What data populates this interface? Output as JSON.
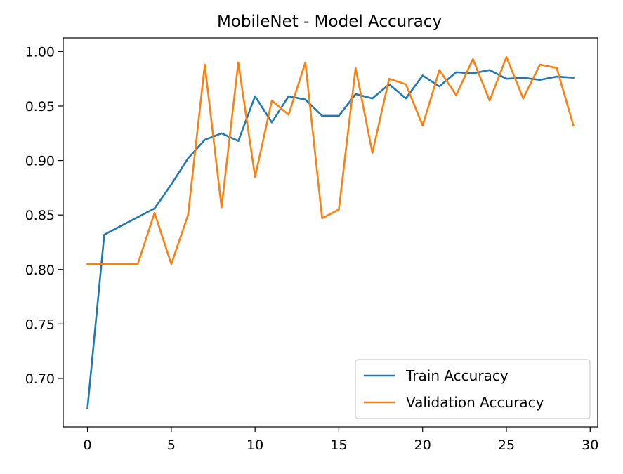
{
  "chart_data": {
    "type": "line",
    "title": "MobileNet - Model Accuracy",
    "xlabel": "",
    "ylabel": "",
    "xlim": [
      -1.45,
      30.45
    ],
    "ylim": [
      0.6555,
      1.0125
    ],
    "xticks": [
      0,
      5,
      10,
      15,
      20,
      25,
      30
    ],
    "xtick_labels": [
      "0",
      "5",
      "10",
      "15",
      "20",
      "25",
      "30"
    ],
    "yticks": [
      0.7,
      0.75,
      0.8,
      0.85,
      0.9,
      0.95,
      1.0
    ],
    "ytick_labels": [
      "0.70",
      "0.75",
      "0.80",
      "0.85",
      "0.90",
      "0.95",
      "1.00"
    ],
    "grid": false,
    "legend_position": "lower right",
    "x": [
      0,
      1,
      2,
      3,
      4,
      5,
      6,
      7,
      8,
      9,
      10,
      11,
      12,
      13,
      14,
      15,
      16,
      17,
      18,
      19,
      20,
      21,
      22,
      23,
      24,
      25,
      26,
      27,
      28,
      29
    ],
    "series": [
      {
        "name": "Train Accuracy",
        "color": "#1f77b4",
        "values": [
          0.673,
          0.832,
          0.84,
          0.848,
          0.856,
          0.878,
          0.902,
          0.919,
          0.925,
          0.918,
          0.959,
          0.935,
          0.959,
          0.956,
          0.941,
          0.941,
          0.961,
          0.957,
          0.97,
          0.957,
          0.978,
          0.968,
          0.981,
          0.98,
          0.983,
          0.975,
          0.976,
          0.974,
          0.977,
          0.976
        ]
      },
      {
        "name": "Validation Accuracy",
        "color": "#ff7f0e",
        "values": [
          0.805,
          0.805,
          0.805,
          0.805,
          0.852,
          0.805,
          0.85,
          0.988,
          0.857,
          0.99,
          0.885,
          0.955,
          0.942,
          0.99,
          0.847,
          0.855,
          0.985,
          0.907,
          0.975,
          0.97,
          0.932,
          0.983,
          0.96,
          0.993,
          0.955,
          0.995,
          0.957,
          0.988,
          0.985,
          0.932
        ]
      }
    ]
  }
}
